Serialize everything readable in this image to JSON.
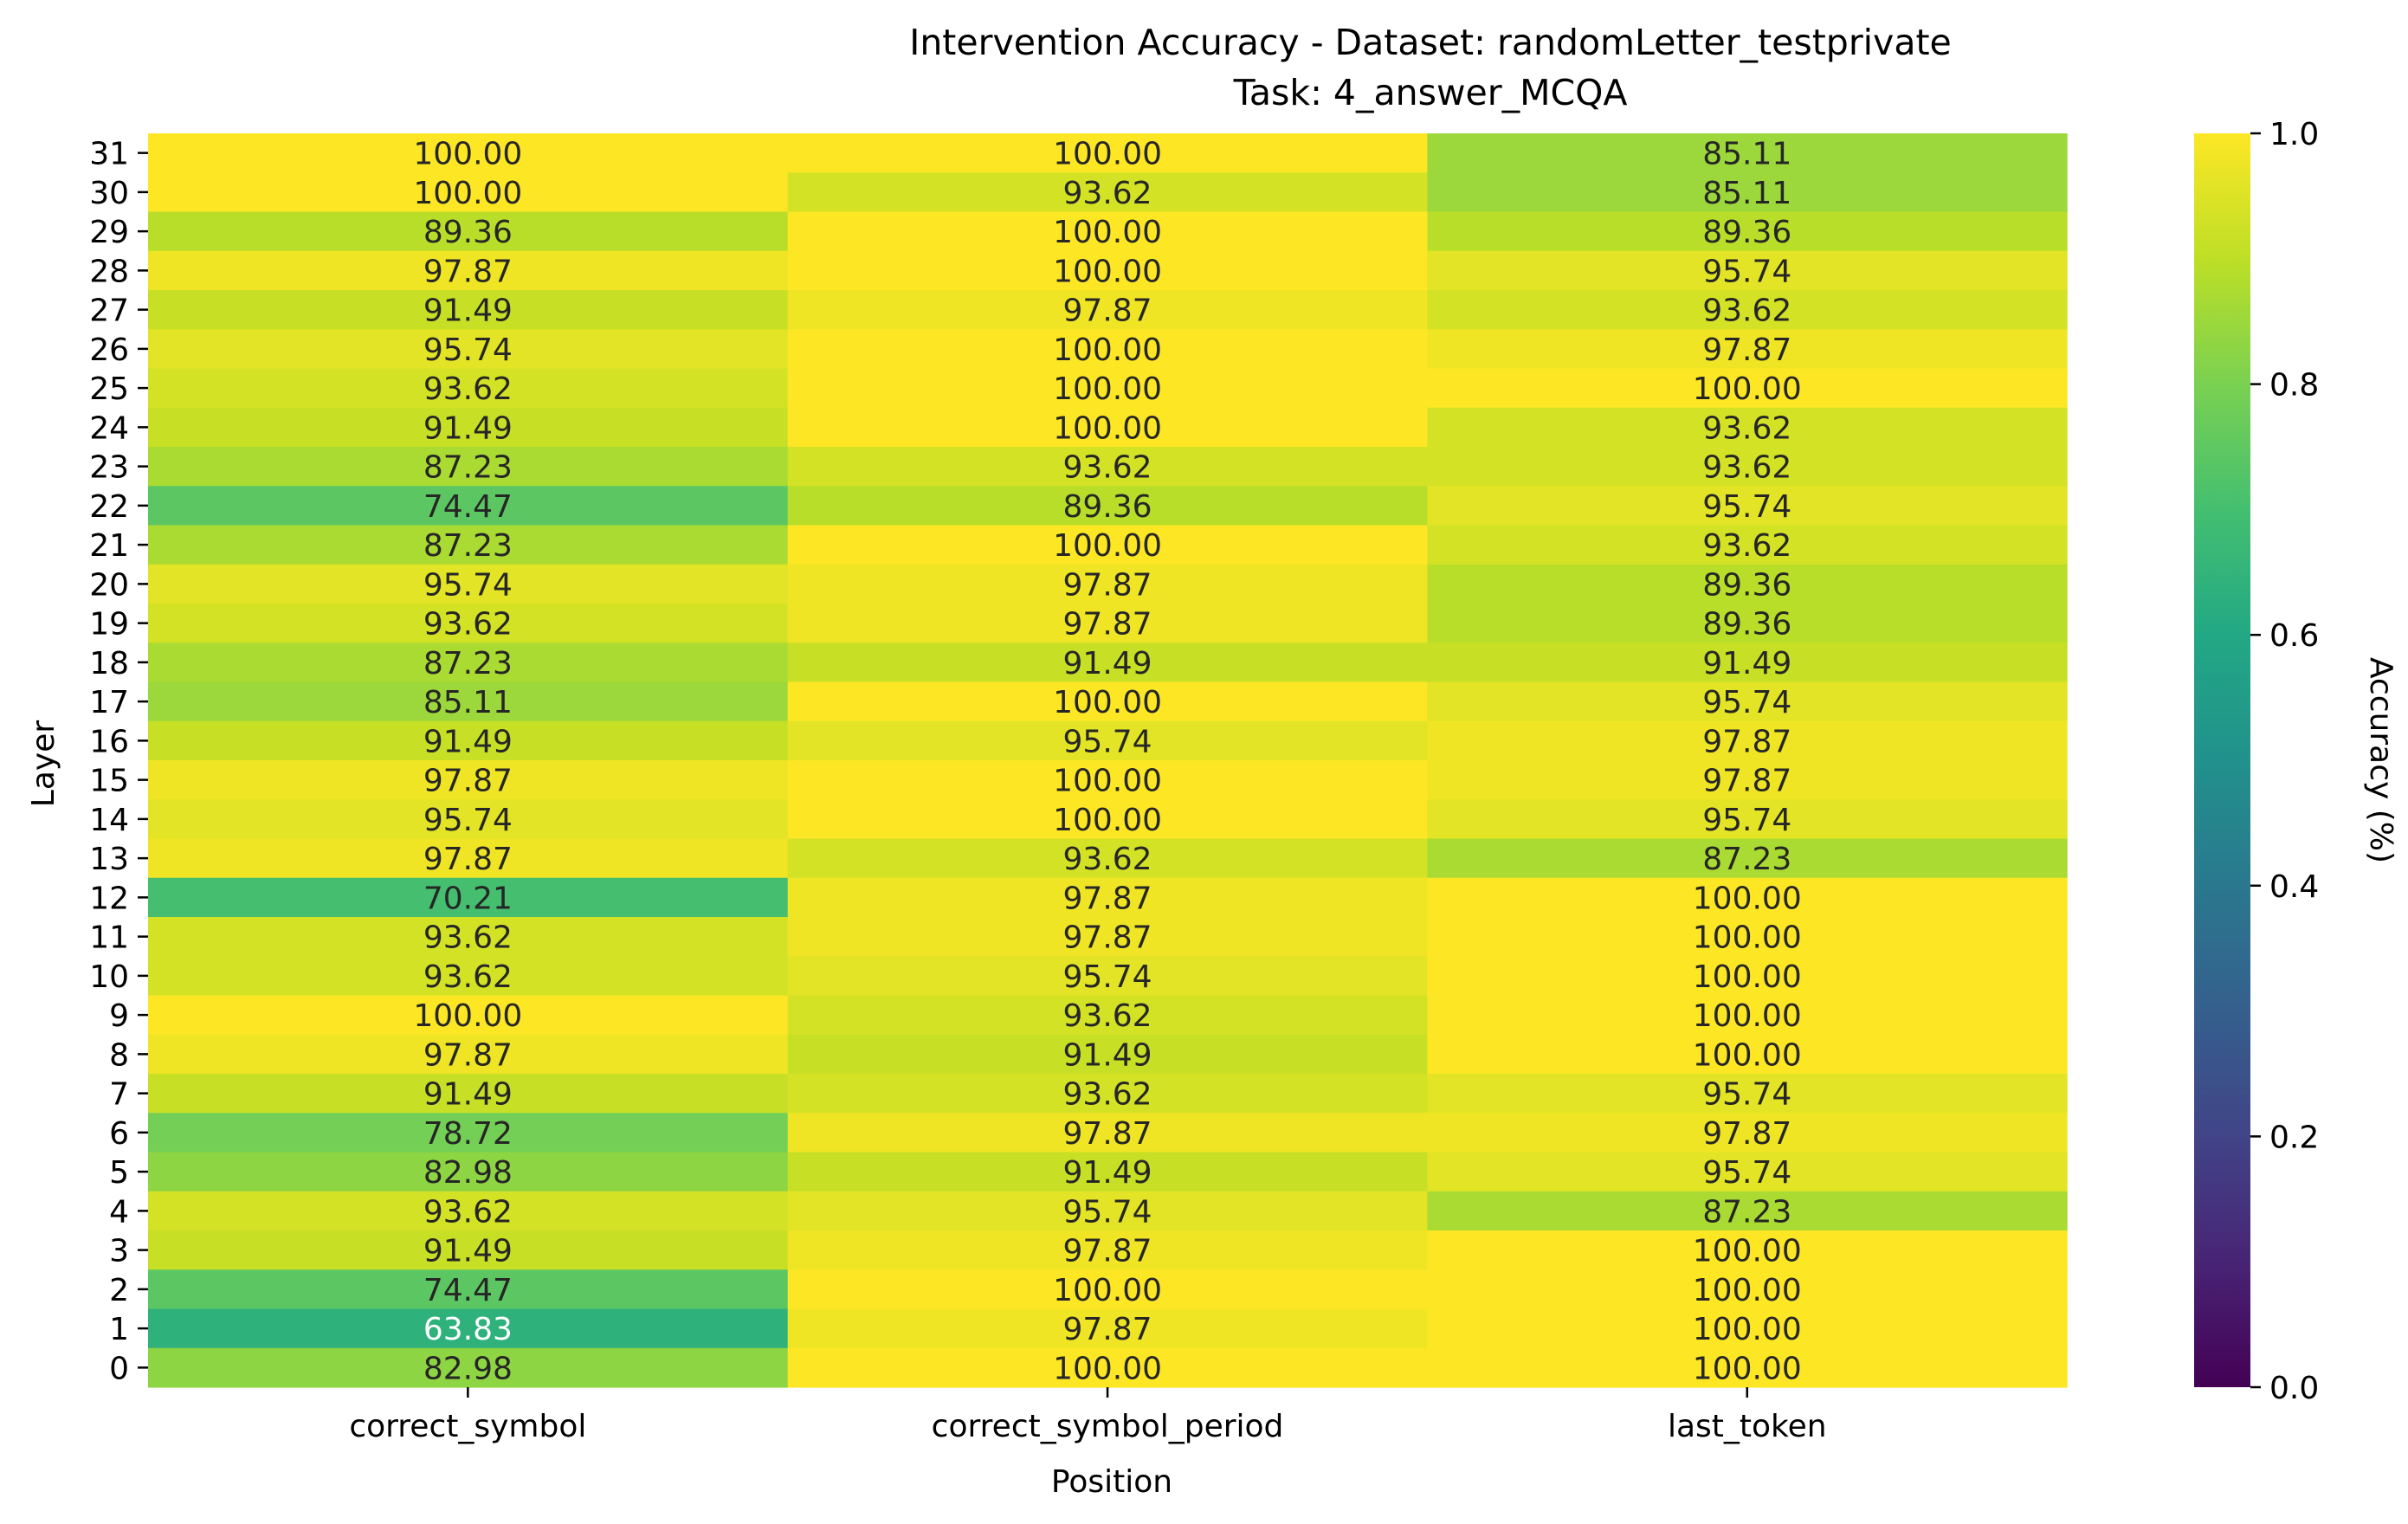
{
  "chart_data": {
    "type": "heatmap",
    "title": "Intervention Accuracy - Dataset: randomLetter_testprivate",
    "subtitle": "Task: 4_answer_MCQA",
    "xlabel": "Position",
    "ylabel": "Layer",
    "colorbar_label": "Accuracy (%)",
    "colormap": "viridis",
    "value_range": [
      0.0,
      1.0
    ],
    "colorbar_ticks": [
      "0.0",
      "0.2",
      "0.4",
      "0.6",
      "0.8",
      "1.0"
    ],
    "columns": [
      "correct_symbol",
      "correct_symbol_period",
      "last_token"
    ],
    "rows": [
      "31",
      "30",
      "29",
      "28",
      "27",
      "26",
      "25",
      "24",
      "23",
      "22",
      "21",
      "20",
      "19",
      "18",
      "17",
      "16",
      "15",
      "14",
      "13",
      "12",
      "11",
      "10",
      "9",
      "8",
      "7",
      "6",
      "5",
      "4",
      "3",
      "2",
      "1",
      "0"
    ],
    "labels": [
      [
        "100.00",
        "100.00",
        "85.11"
      ],
      [
        "100.00",
        "93.62",
        "85.11"
      ],
      [
        "89.36",
        "100.00",
        "89.36"
      ],
      [
        "97.87",
        "100.00",
        "95.74"
      ],
      [
        "91.49",
        "97.87",
        "93.62"
      ],
      [
        "95.74",
        "100.00",
        "97.87"
      ],
      [
        "93.62",
        "100.00",
        "100.00"
      ],
      [
        "91.49",
        "100.00",
        "93.62"
      ],
      [
        "87.23",
        "93.62",
        "93.62"
      ],
      [
        "74.47",
        "89.36",
        "95.74"
      ],
      [
        "87.23",
        "100.00",
        "93.62"
      ],
      [
        "95.74",
        "97.87",
        "89.36"
      ],
      [
        "93.62",
        "97.87",
        "89.36"
      ],
      [
        "87.23",
        "91.49",
        "91.49"
      ],
      [
        "85.11",
        "100.00",
        "95.74"
      ],
      [
        "91.49",
        "95.74",
        "97.87"
      ],
      [
        "97.87",
        "100.00",
        "97.87"
      ],
      [
        "95.74",
        "100.00",
        "95.74"
      ],
      [
        "97.87",
        "93.62",
        "87.23"
      ],
      [
        "70.21",
        "97.87",
        "100.00"
      ],
      [
        "93.62",
        "97.87",
        "100.00"
      ],
      [
        "93.62",
        "95.74",
        "100.00"
      ],
      [
        "100.00",
        "93.62",
        "100.00"
      ],
      [
        "97.87",
        "91.49",
        "100.00"
      ],
      [
        "91.49",
        "93.62",
        "95.74"
      ],
      [
        "78.72",
        "97.87",
        "97.87"
      ],
      [
        "82.98",
        "91.49",
        "95.74"
      ],
      [
        "93.62",
        "95.74",
        "87.23"
      ],
      [
        "91.49",
        "97.87",
        "100.00"
      ],
      [
        "74.47",
        "100.00",
        "100.00"
      ],
      [
        "63.83",
        "97.87",
        "100.00"
      ],
      [
        "82.98",
        "100.00",
        "100.00"
      ]
    ]
  }
}
